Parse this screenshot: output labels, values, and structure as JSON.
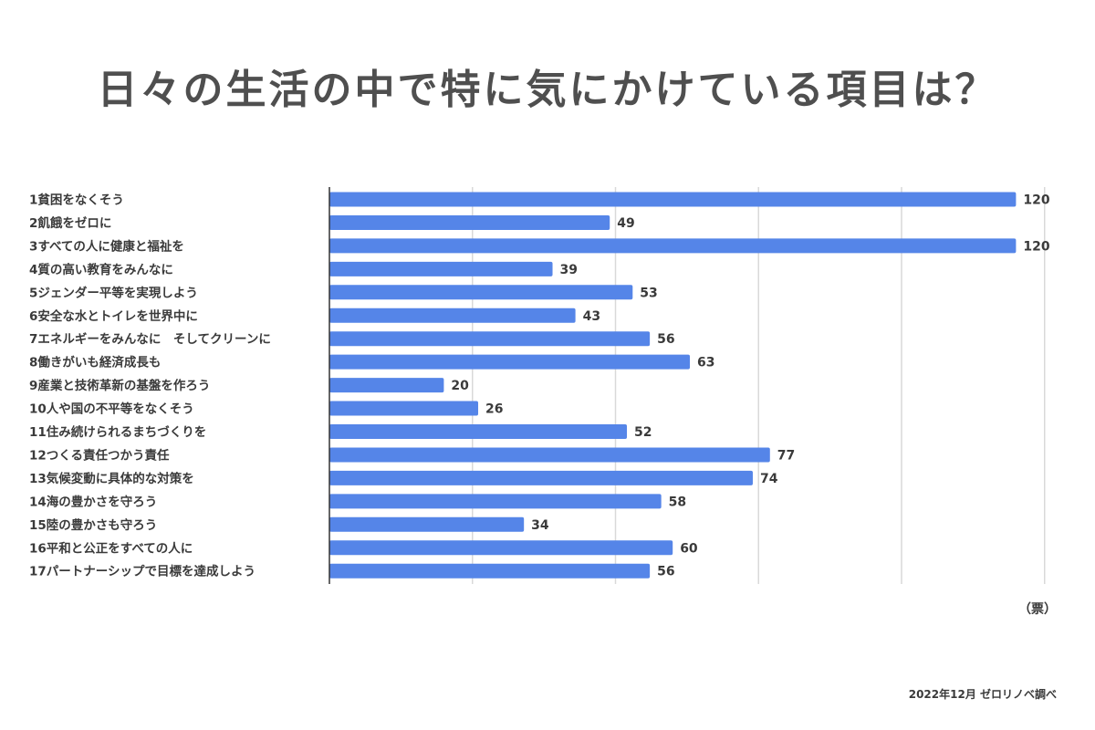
{
  "title": "日々の生活の中で特に気にかけている項目は？",
  "unit_label": "（票）",
  "source_note": "2022年12月 ゼロリノベ調べ",
  "colors": {
    "bar": "#5585e8",
    "grid": "#d9d9d9",
    "axis": "#333333",
    "text": "#3a3a3a"
  },
  "chart_data": {
    "type": "bar",
    "orientation": "horizontal",
    "title": "日々の生活の中で特に気にかけている項目は？",
    "xlabel": "（票）",
    "ylabel": "",
    "xlim": [
      0,
      125
    ],
    "grid": true,
    "categories": [
      "1貧困をなくそう",
      "2飢餓をゼロに",
      "3すべての人に健康と福祉を",
      "4質の高い教育をみんなに",
      "5ジェンダー平等を実現しよう",
      "6安全な水とトイレを世界中に",
      "7エネルギーをみんなに　そしてクリーンに",
      "8働きがいも経済成長も",
      "9産業と技術革新の基盤を作ろう",
      "10人や国の不平等をなくそう",
      "11住み続けられるまちづくりを",
      "12つくる責任つかう責任",
      "13気候変動に具体的な対策を",
      "14海の豊かさを守ろう",
      "15陸の豊かさも守ろう",
      "16平和と公正をすべての人に",
      "17パートナーシップで目標を達成しよう"
    ],
    "values": [
      120,
      49,
      120,
      39,
      53,
      43,
      56,
      63,
      20,
      26,
      52,
      77,
      74,
      58,
      34,
      60,
      56
    ]
  }
}
